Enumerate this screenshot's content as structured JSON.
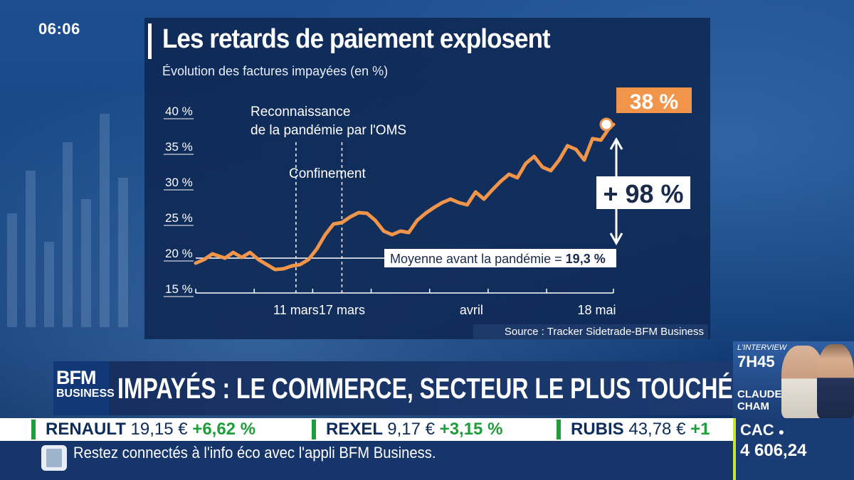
{
  "clock": "06:06",
  "chart": {
    "title": "Les retards de paiement explosent",
    "subtitle": "Évolution des factures impayées (en %)",
    "source": "Source : Tracker Sidetrade-BFM Business",
    "callout_last": "38 %",
    "callout_change": "+ 98 %",
    "baseline_label_prefix": "Moyenne avant la pandémie = ",
    "baseline_label_value": "19,3 %",
    "event_labels": [
      "Reconnaissance",
      "de la pandémie par l'OMS",
      "Confinement"
    ],
    "accent_color": "#f0954a"
  },
  "chart_data": {
    "type": "line",
    "ylim": [
      15,
      40
    ],
    "ytick_labels": [
      "40 %",
      "35 %",
      "30 %",
      "25 %",
      "20 %",
      "15 %"
    ],
    "ytick_values": [
      40,
      35,
      30,
      25,
      20,
      15
    ],
    "xtick_labels": [
      "11 mars",
      "17 mars",
      "avril",
      "18 mai"
    ],
    "xtick_values": [
      0.24,
      0.35,
      0.66,
      0.96
    ],
    "baseline": 19.3,
    "events": [
      0.24,
      0.35
    ],
    "x": [
      0.0,
      0.02,
      0.04,
      0.07,
      0.09,
      0.11,
      0.13,
      0.15,
      0.17,
      0.19,
      0.21,
      0.23,
      0.25,
      0.27,
      0.29,
      0.31,
      0.33,
      0.35,
      0.37,
      0.39,
      0.41,
      0.43,
      0.45,
      0.47,
      0.49,
      0.51,
      0.53,
      0.55,
      0.57,
      0.59,
      0.61,
      0.63,
      0.65,
      0.67,
      0.69,
      0.71,
      0.73,
      0.75,
      0.77,
      0.79,
      0.81,
      0.83,
      0.85,
      0.87,
      0.89,
      0.91,
      0.93,
      0.95,
      0.97,
      0.99,
      1.0
    ],
    "y": [
      18.5,
      19.0,
      19.8,
      19.2,
      20.0,
      19.3,
      20.0,
      19.0,
      18.3,
      17.6,
      17.7,
      18.1,
      18.3,
      19.0,
      20.5,
      22.5,
      24.0,
      24.2,
      25.0,
      25.6,
      25.5,
      24.5,
      23.0,
      22.5,
      23.0,
      22.8,
      24.5,
      25.5,
      26.3,
      27.0,
      27.5,
      27.0,
      26.7,
      28.5,
      27.5,
      28.8,
      30.0,
      31.0,
      30.5,
      32.5,
      33.5,
      32.0,
      31.5,
      33.0,
      35.0,
      34.5,
      33.0,
      36.0,
      35.8,
      37.5,
      38.0
    ],
    "series": [
      {
        "name": "",
        "color": "#f0954a"
      }
    ]
  },
  "headline": "IMPAYÉS : LE COMMERCE, SECTEUR LE PLUS TOUCHÉ",
  "logo": {
    "line1": "BFM",
    "line2": "BUSINESS"
  },
  "interview": {
    "label": "L'INTERVIEW",
    "time": "7H45",
    "first_name": "CLAUDE",
    "last_name": "CHAM"
  },
  "ticker": [
    {
      "name": "RENAULT",
      "price": "19,15 €",
      "change": "+6,62 %"
    },
    {
      "name": "REXEL",
      "price": "9,17 €",
      "change": "+3,15 %"
    },
    {
      "name": "RUBIS",
      "price": "43,78 €",
      "change": "+1"
    }
  ],
  "index": {
    "name": "CAC",
    "value": "4 606,24"
  },
  "info_text": "Restez connectés à l'info éco avec l'appli BFM Business."
}
